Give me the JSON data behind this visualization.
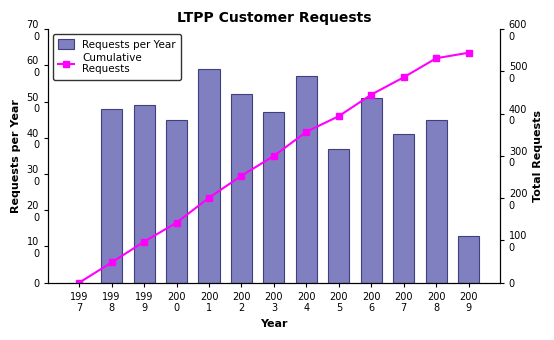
{
  "title": "LTPP Customer Requests",
  "years": [
    "1997",
    "1998",
    "1999",
    "2000",
    "2001",
    "2002",
    "2003",
    "2004",
    "2005",
    "2006",
    "2007",
    "2008",
    "2009"
  ],
  "requests_per_year": [
    0,
    48,
    49,
    45,
    59,
    52,
    47,
    57,
    37,
    51,
    41,
    45,
    13
  ],
  "cumulative": [
    0,
    48,
    97,
    142,
    201,
    253,
    300,
    357,
    394,
    445,
    486,
    531,
    544
  ],
  "bar_color": "#8080c0",
  "line_color": "#ff00ff",
  "bar_edge_color": "#404080",
  "xlabel": "Year",
  "ylabel_left": "Requests per Year",
  "ylabel_right": "Total Requests",
  "ylim_left": [
    0,
    70
  ],
  "ylim_right": [
    0,
    600
  ],
  "yticks_left": [
    0,
    10,
    20,
    30,
    40,
    50,
    60,
    70
  ],
  "ytick_labels_left": [
    "0",
    "10\n0",
    "20\n0",
    "30\n0",
    "40\n0",
    "50\n0",
    "60\n0",
    "70\n0"
  ],
  "yticks_right": [
    0,
    100,
    200,
    300,
    400,
    500,
    600
  ],
  "ytick_labels_right": [
    "0",
    "100\n0",
    "200\n0",
    "300\n0",
    "400\n0",
    "500\n0",
    "600\n0"
  ],
  "legend_labels": [
    "Requests per Year",
    "Cumulative\nRequests"
  ],
  "bg_color": "#ffffff",
  "title_fontsize": 10,
  "axis_label_fontsize": 8,
  "tick_fontsize": 7,
  "legend_fontsize": 7.5
}
